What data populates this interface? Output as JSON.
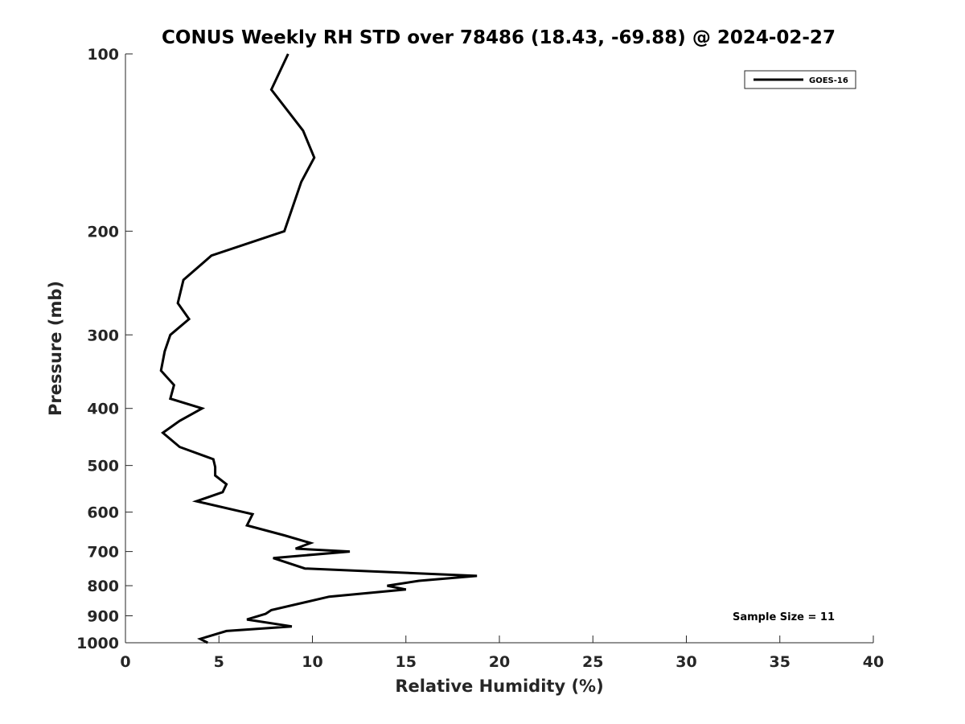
{
  "chart_data": {
    "type": "line",
    "title": "CONUS Weekly RH STD over 78486 (18.43, -69.88) @ 2024-02-27",
    "xlabel": "Relative Humidity (%)",
    "ylabel": "Pressure (mb)",
    "xlim": [
      0,
      40
    ],
    "ylim": [
      100,
      1000
    ],
    "y_scale": "log",
    "y_reversed": true,
    "x_ticks": [
      0,
      5,
      10,
      15,
      20,
      25,
      30,
      35,
      40
    ],
    "y_ticks": [
      100,
      200,
      300,
      400,
      500,
      600,
      700,
      800,
      900,
      1000
    ],
    "grid": false,
    "legend_position": "top-right",
    "series": [
      {
        "name": "GOES-16",
        "color": "#000000",
        "x": [
          8.7,
          7.8,
          9.5,
          10.1,
          9.4,
          8.5,
          4.6,
          3.1,
          2.8,
          3.4,
          2.4,
          2.1,
          1.9,
          2.6,
          2.4,
          4.1,
          2.9,
          2.0,
          2.9,
          4.7,
          4.8,
          4.8,
          5.4,
          5.2,
          3.8,
          6.8,
          6.5,
          8.5,
          9.9,
          9.1,
          12.0,
          7.9,
          9.6,
          18.8,
          15.7,
          14.0,
          15.0,
          10.9,
          7.8,
          7.5,
          6.5,
          8.9,
          5.4,
          4.0,
          4.4
        ],
        "y": [
          100,
          115,
          135,
          150,
          165,
          200,
          220,
          242,
          265,
          282,
          300,
          320,
          345,
          365,
          385,
          400,
          420,
          440,
          465,
          488,
          503,
          520,
          538,
          555,
          575,
          605,
          632,
          657,
          677,
          692,
          700,
          718,
          748,
          770,
          785,
          800,
          812,
          835,
          880,
          893,
          913,
          938,
          955,
          985,
          1000
        ]
      }
    ],
    "annotations": [
      "Sample Size = 11"
    ]
  }
}
